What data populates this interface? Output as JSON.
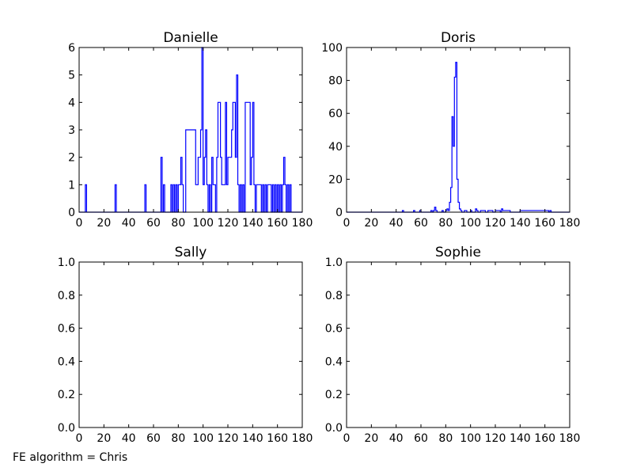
{
  "figure_note": "FE algorithm = Chris",
  "colors": {
    "line": "#0000ff",
    "axes": "#000000",
    "background": "#ffffff"
  },
  "chart_data": [
    {
      "type": "line",
      "style": "step",
      "title": "Danielle",
      "xlim": [
        0,
        180
      ],
      "ylim": [
        0,
        6
      ],
      "xticks": [
        0,
        20,
        40,
        60,
        80,
        100,
        120,
        140,
        160,
        180
      ],
      "yticks": [
        0,
        1,
        2,
        3,
        4,
        5,
        6
      ],
      "ytick_labels": [
        "0",
        "1",
        "2",
        "3",
        "4",
        "5",
        "6"
      ],
      "bin_width": 1,
      "series": [
        {
          "x": [
            0,
            5,
            6,
            29,
            30,
            53,
            54,
            66,
            67,
            68,
            69,
            70,
            74,
            75,
            76,
            77,
            78,
            79,
            80,
            82,
            83,
            84,
            86,
            94,
            96,
            98,
            99,
            100,
            101,
            102,
            103,
            104,
            105,
            106,
            107,
            108,
            110,
            111,
            112,
            114,
            115,
            118,
            119,
            120,
            123,
            124,
            126,
            127,
            128,
            129,
            130,
            131,
            132,
            133,
            134,
            138,
            139,
            140,
            141,
            142,
            143,
            147,
            148,
            149,
            150,
            151,
            152,
            155,
            156,
            157,
            158,
            159,
            160,
            161,
            162,
            163,
            164,
            165,
            166,
            167,
            168,
            169,
            170,
            171,
            180
          ],
          "values": [
            0,
            1,
            0,
            1,
            0,
            1,
            0,
            2,
            0,
            1,
            0,
            0,
            1,
            0,
            1,
            0,
            1,
            0,
            1,
            2,
            1,
            0,
            3,
            1,
            2,
            3,
            6,
            1,
            2,
            3,
            1,
            0,
            1,
            0,
            2,
            1,
            0,
            2,
            4,
            2,
            1,
            4,
            1,
            2,
            3,
            4,
            2,
            5,
            1,
            0,
            1,
            0,
            1,
            0,
            4,
            1,
            2,
            4,
            1,
            0,
            1,
            0,
            1,
            0,
            1,
            0,
            1,
            0,
            1,
            0,
            1,
            0,
            1,
            0,
            1,
            0,
            1,
            2,
            1,
            0,
            1,
            0,
            1,
            0,
            0
          ]
        }
      ]
    },
    {
      "type": "line",
      "style": "step",
      "title": "Doris",
      "xlim": [
        0,
        180
      ],
      "ylim": [
        0,
        100
      ],
      "xticks": [
        0,
        20,
        40,
        60,
        80,
        100,
        120,
        140,
        160,
        180
      ],
      "yticks": [
        0,
        20,
        40,
        60,
        80,
        100
      ],
      "ytick_labels": [
        "0",
        "20",
        "40",
        "60",
        "80",
        "100"
      ],
      "bin_width": 1,
      "series": [
        {
          "x": [
            0,
            45,
            46,
            54,
            55,
            59,
            60,
            68,
            69,
            70,
            71,
            72,
            73,
            77,
            78,
            80,
            81,
            82,
            83,
            84,
            85,
            86,
            87,
            88,
            89,
            90,
            91,
            92,
            93,
            95,
            97,
            100,
            101,
            104,
            105,
            106,
            108,
            112,
            114,
            118,
            120,
            124,
            125,
            126,
            132,
            140,
            163,
            164,
            165,
            180
          ],
          "values": [
            0,
            1,
            0,
            1,
            0,
            1,
            0,
            1,
            0,
            1,
            3,
            1,
            0,
            1,
            0,
            1,
            2,
            1,
            6,
            15,
            58,
            40,
            82,
            91,
            20,
            6,
            2,
            1,
            0,
            1,
            0,
            1,
            0,
            2,
            1,
            0,
            1,
            0,
            1,
            0,
            1,
            0,
            2,
            1,
            0,
            1,
            0,
            1,
            0,
            0
          ]
        }
      ]
    },
    {
      "type": "line",
      "style": "step",
      "title": "Sally",
      "xlim": [
        0,
        180
      ],
      "ylim": [
        0,
        1
      ],
      "xticks": [
        0,
        20,
        40,
        60,
        80,
        100,
        120,
        140,
        160,
        180
      ],
      "yticks": [
        0,
        0.2,
        0.4,
        0.6,
        0.8,
        1.0
      ],
      "ytick_labels": [
        "0.0",
        "0.2",
        "0.4",
        "0.6",
        "0.8",
        "1.0"
      ],
      "series": []
    },
    {
      "type": "line",
      "style": "step",
      "title": "Sophie",
      "xlim": [
        0,
        180
      ],
      "ylim": [
        0,
        1
      ],
      "xticks": [
        0,
        20,
        40,
        60,
        80,
        100,
        120,
        140,
        160,
        180
      ],
      "yticks": [
        0,
        0.2,
        0.4,
        0.6,
        0.8,
        1.0
      ],
      "ytick_labels": [
        "0.0",
        "0.2",
        "0.4",
        "0.6",
        "0.8",
        "1.0"
      ],
      "series": []
    }
  ]
}
